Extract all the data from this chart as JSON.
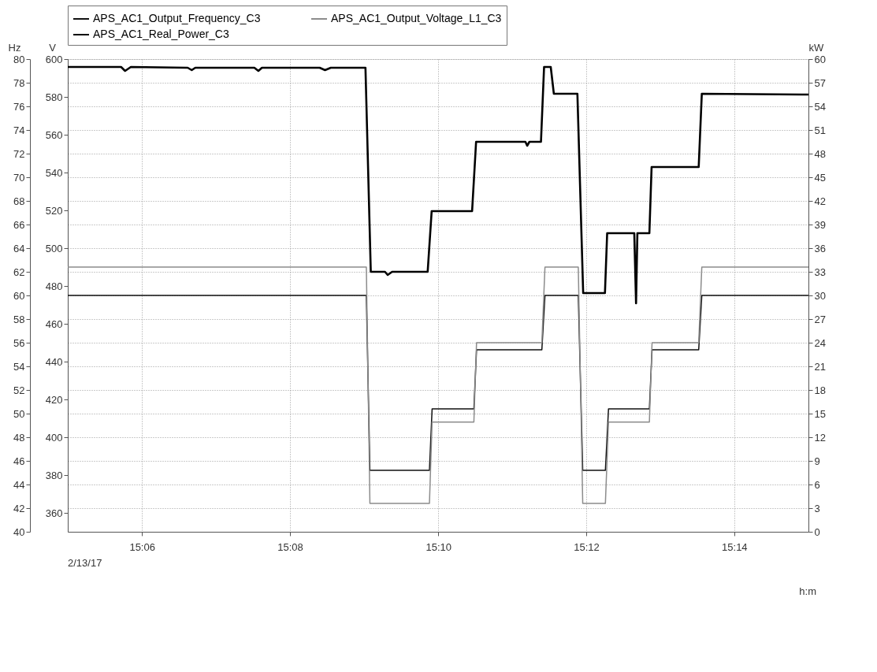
{
  "chart_data": {
    "type": "line",
    "xlabel": "h:m",
    "ylabel": "Hz",
    "y2label": "V",
    "y3label": "kW",
    "xlim": [
      15.0833,
      15.25
    ],
    "xticks": [
      {
        "value": 15.1,
        "label": "15:06"
      },
      {
        "value": 15.1333,
        "label": "15:08"
      },
      {
        "value": 15.1667,
        "label": "15:10"
      },
      {
        "value": 15.2,
        "label": "15:12"
      },
      {
        "value": 15.2333,
        "label": "15:14"
      }
    ],
    "ylim": [
      40,
      80
    ],
    "yticks": [
      40,
      42,
      44,
      46,
      48,
      50,
      52,
      54,
      56,
      58,
      60,
      62,
      64,
      66,
      68,
      70,
      72,
      74,
      76,
      78,
      80
    ],
    "y2lim": [
      350,
      600
    ],
    "y2ticks": [
      360,
      380,
      400,
      420,
      440,
      460,
      480,
      500,
      520,
      540,
      560,
      580,
      600
    ],
    "y3lim": [
      0,
      60
    ],
    "y3ticks": [
      0,
      3,
      6,
      9,
      12,
      15,
      18,
      21,
      24,
      27,
      30,
      33,
      36,
      39,
      42,
      45,
      48,
      51,
      54,
      57,
      60
    ],
    "grid": true,
    "legend": "top",
    "marker": "none",
    "line_style": "solid",
    "annotations": [
      "2/13/17"
    ],
    "series": [
      {
        "name": "APS_AC1_Output_Frequency_C3",
        "color": "#111111",
        "x": [
          15.0833,
          15.1505,
          15.1513,
          15.1647,
          15.1653,
          15.1747,
          15.1753,
          15.19,
          15.1907,
          15.1982,
          15.1992,
          15.2043,
          15.205,
          15.2142,
          15.2148,
          15.2253,
          15.226,
          15.25
        ],
        "values": [
          60,
          60,
          45.2,
          45.2,
          50.4,
          50.4,
          55.4,
          55.4,
          60,
          60,
          45.2,
          45.2,
          50.4,
          50.4,
          55.4,
          55.4,
          60,
          60
        ]
      },
      {
        "name": "APS_AC1_Output_Voltage_L1_C3",
        "color": "#8c8c8c",
        "axis": "y2",
        "x": [
          15.0833,
          15.1505,
          15.1513,
          15.1647,
          15.1653,
          15.1747,
          15.1753,
          15.19,
          15.1907,
          15.1982,
          15.1992,
          15.2043,
          15.205,
          15.2142,
          15.2148,
          15.2253,
          15.226,
          15.25
        ],
        "values": [
          490,
          490,
          365,
          365,
          408,
          408,
          450,
          450,
          490,
          490,
          365,
          365,
          408,
          408,
          450,
          450,
          490,
          490
        ]
      },
      {
        "name": "APS_AC1_Real_Power_C3",
        "color": "#000000",
        "axis": "y3",
        "x": [
          15.0833,
          15.0953,
          15.0962,
          15.0975,
          15.1103,
          15.1112,
          15.112,
          15.1253,
          15.1262,
          15.127,
          15.14,
          15.1412,
          15.1425,
          15.1503,
          15.1515,
          15.1547,
          15.1553,
          15.1563,
          15.1643,
          15.1652,
          15.1743,
          15.1752,
          15.1863,
          15.1867,
          15.1872,
          15.1898,
          15.1905,
          15.192,
          15.1927,
          15.198,
          15.1993,
          15.2042,
          15.2047,
          15.2108,
          15.2112,
          15.2115,
          15.2142,
          15.2147,
          15.2253,
          15.226,
          15.25
        ],
        "values": [
          59.0,
          59.0,
          58.5,
          59.0,
          58.9,
          58.6,
          58.9,
          58.9,
          58.5,
          58.9,
          58.9,
          58.6,
          58.9,
          58.9,
          33.0,
          33.0,
          32.6,
          33.0,
          33.0,
          40.7,
          40.7,
          49.5,
          49.5,
          49.0,
          49.5,
          49.5,
          59.0,
          59.0,
          55.6,
          55.6,
          30.3,
          30.3,
          37.9,
          37.9,
          29.0,
          37.9,
          37.9,
          46.3,
          46.3,
          55.6,
          55.5
        ]
      }
    ]
  }
}
